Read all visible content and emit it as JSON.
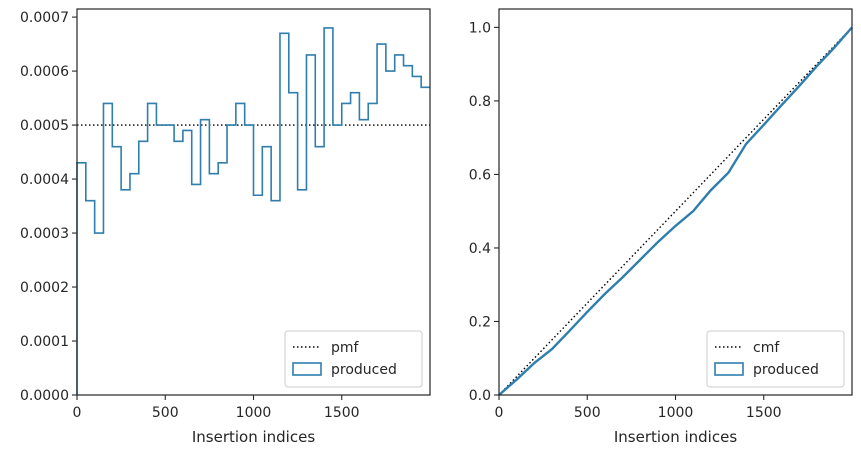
{
  "chart_data": [
    {
      "type": "step-histogram",
      "xlabel": "Insertion indices",
      "xlim": [
        0,
        2000
      ],
      "ylim": [
        0,
        0.000715
      ],
      "xticks": [
        0,
        500,
        1000,
        1500
      ],
      "xtick_labels": [
        "0",
        "500",
        "1000",
        "1500"
      ],
      "yticks": [
        0,
        0.0001,
        0.0002,
        0.0003,
        0.0004,
        0.0005,
        0.0006,
        0.0007
      ],
      "ytick_labels": [
        "0.0000",
        "0.0001",
        "0.0002",
        "0.0003",
        "0.0004",
        "0.0005",
        "0.0006",
        "0.0007"
      ],
      "reference_line": {
        "name": "pmf",
        "value": 0.0005,
        "style": "dotted",
        "color": "#000000"
      },
      "series": [
        {
          "name": "produced",
          "color": "#2f7ead",
          "bin_width": 50,
          "bin_start": 0,
          "values": [
            0.00043,
            0.00036,
            0.0003,
            0.00054,
            0.00046,
            0.00038,
            0.00041,
            0.00047,
            0.00054,
            0.0005,
            0.0005,
            0.00047,
            0.00049,
            0.00039,
            0.00051,
            0.00041,
            0.00043,
            0.0005,
            0.00054,
            0.0005,
            0.00037,
            0.00046,
            0.00036,
            0.00067,
            0.00056,
            0.00038,
            0.00063,
            0.00046,
            0.00068,
            0.0005,
            0.00054,
            0.00056,
            0.00051,
            0.00054,
            0.00065,
            0.0006,
            0.00063,
            0.00061,
            0.00059,
            0.00057
          ]
        }
      ],
      "legend": {
        "placement": "lower-right",
        "entries": [
          "pmf",
          "produced"
        ]
      }
    },
    {
      "type": "cumulative-line",
      "xlabel": "Insertion indices",
      "xlim": [
        0,
        2000
      ],
      "ylim": [
        0,
        1.05
      ],
      "xticks": [
        0,
        500,
        1000,
        1500
      ],
      "xtick_labels": [
        "0",
        "500",
        "1000",
        "1500"
      ],
      "yticks": [
        0,
        0.2,
        0.4,
        0.6,
        0.8,
        1.0
      ],
      "ytick_labels": [
        "0.0",
        "0.2",
        "0.4",
        "0.6",
        "0.8",
        "1.0"
      ],
      "reference_line": {
        "name": "cmf",
        "from": [
          0,
          0
        ],
        "to": [
          2000,
          1.0
        ],
        "style": "dotted",
        "color": "#000000"
      },
      "series": [
        {
          "name": "produced",
          "color": "#2f7ead",
          "x": [
            0,
            100,
            200,
            300,
            400,
            500,
            600,
            700,
            800,
            900,
            1000,
            1100,
            1200,
            1300,
            1400,
            1500,
            1600,
            1700,
            1800,
            1900,
            2000
          ],
          "y": [
            0,
            0.042,
            0.087,
            0.125,
            0.175,
            0.226,
            0.275,
            0.32,
            0.368,
            0.416,
            0.46,
            0.5,
            0.557,
            0.605,
            0.683,
            0.735,
            0.788,
            0.84,
            0.894,
            0.945,
            1.0
          ]
        }
      ],
      "legend": {
        "placement": "lower-right",
        "entries": [
          "cmf",
          "produced"
        ]
      }
    }
  ]
}
